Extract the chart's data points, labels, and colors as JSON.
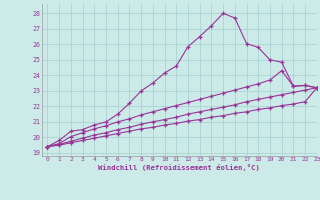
{
  "xlabel": "Windchill (Refroidissement éolien,°C)",
  "bg_color": "#cceae8",
  "grid_color": "#aad4d2",
  "line_color": "#993399",
  "xlim": [
    -0.5,
    23
  ],
  "ylim": [
    18.8,
    28.6
  ],
  "yticks": [
    19,
    20,
    21,
    22,
    23,
    24,
    25,
    26,
    27,
    28
  ],
  "xticks": [
    0,
    1,
    2,
    3,
    4,
    5,
    6,
    7,
    8,
    9,
    10,
    11,
    12,
    13,
    14,
    15,
    16,
    17,
    18,
    19,
    20,
    21,
    22,
    23
  ],
  "line1_x": [
    0,
    1,
    2,
    3,
    4,
    5,
    6,
    7,
    8,
    9,
    10,
    11,
    12,
    13,
    14,
    15,
    16,
    17,
    18,
    19,
    20,
    21,
    22,
    23
  ],
  "line1_y": [
    19.4,
    19.8,
    20.4,
    20.5,
    20.8,
    21.0,
    21.5,
    22.2,
    23.0,
    23.5,
    24.15,
    24.6,
    25.85,
    26.5,
    27.2,
    28.0,
    27.7,
    26.05,
    25.8,
    25.0,
    24.85,
    23.3,
    23.35,
    23.2
  ],
  "line2_x": [
    0,
    1,
    2,
    3,
    4,
    5,
    6,
    7,
    8,
    9,
    10,
    11,
    12,
    13,
    14,
    15,
    16,
    17,
    18,
    19,
    20,
    21,
    22,
    23
  ],
  "line2_y": [
    19.4,
    19.6,
    20.05,
    20.3,
    20.55,
    20.75,
    21.0,
    21.2,
    21.45,
    21.65,
    21.85,
    22.05,
    22.25,
    22.45,
    22.65,
    22.85,
    23.05,
    23.25,
    23.45,
    23.7,
    24.3,
    23.3,
    23.35,
    23.2
  ],
  "line3_x": [
    0,
    1,
    2,
    3,
    4,
    5,
    6,
    7,
    8,
    9,
    10,
    11,
    12,
    13,
    14,
    15,
    16,
    17,
    18,
    19,
    20,
    21,
    22,
    23
  ],
  "line3_y": [
    19.4,
    19.55,
    19.75,
    19.95,
    20.15,
    20.3,
    20.5,
    20.65,
    20.85,
    21.0,
    21.15,
    21.3,
    21.5,
    21.65,
    21.8,
    21.95,
    22.1,
    22.3,
    22.45,
    22.6,
    22.75,
    22.9,
    23.05,
    23.2
  ],
  "line4_x": [
    0,
    1,
    2,
    3,
    4,
    5,
    6,
    7,
    8,
    9,
    10,
    11,
    12,
    13,
    14,
    15,
    16,
    17,
    18,
    19,
    20,
    21,
    22,
    23
  ],
  "line4_y": [
    19.4,
    19.5,
    19.65,
    19.8,
    19.95,
    20.1,
    20.25,
    20.4,
    20.55,
    20.65,
    20.8,
    20.9,
    21.05,
    21.15,
    21.3,
    21.4,
    21.55,
    21.65,
    21.8,
    21.9,
    22.05,
    22.15,
    22.3,
    23.2
  ]
}
